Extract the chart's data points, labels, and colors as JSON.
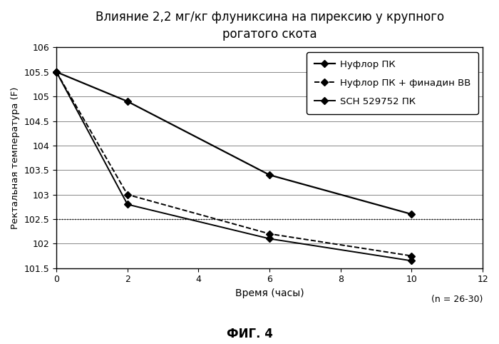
{
  "title": "Влияние 2,2 мг/кг флуниксина на пирексию у крупного\nрогатого скота",
  "xlabel": "Время (часы)",
  "ylabel": "Ректальная температура (F)",
  "figsize": [
    7.0,
    4.82
  ],
  "dpi": 100,
  "xlim": [
    0,
    12
  ],
  "ylim": [
    101.5,
    106
  ],
  "xticks": [
    0,
    2,
    4,
    6,
    8,
    10,
    12
  ],
  "yticks": [
    101.5,
    102.0,
    102.5,
    103.0,
    103.5,
    104.0,
    104.5,
    105.0,
    105.5,
    106.0
  ],
  "ytick_labels": [
    "101.5",
    "102",
    "102.5",
    "103",
    "103.5",
    "104",
    "104.5",
    "105",
    "105.5",
    "106"
  ],
  "hline_y": 102.5,
  "series": [
    {
      "label": "Нуфлор ПК",
      "x": [
        0,
        2,
        6,
        10
      ],
      "y": [
        105.5,
        104.9,
        103.4,
        102.6
      ],
      "color": "#000000",
      "linestyle": "-",
      "linewidth": 1.6,
      "marker": "D",
      "markersize": 5,
      "markerfacecolor": "#000000"
    },
    {
      "label": "Нуфлор ПК + финадин ВВ",
      "x": [
        0,
        2,
        6,
        10
      ],
      "y": [
        105.5,
        103.0,
        102.2,
        101.75
      ],
      "color": "#000000",
      "linestyle": "--",
      "linewidth": 1.4,
      "marker": "D",
      "markersize": 5,
      "markerfacecolor": "#000000"
    },
    {
      "label": "SCH 529752 ПК",
      "x": [
        0,
        2,
        6,
        10
      ],
      "y": [
        105.5,
        102.8,
        102.1,
        101.65
      ],
      "color": "#000000",
      "linestyle": "-",
      "linewidth": 1.4,
      "marker": "D",
      "markersize": 5,
      "markerfacecolor": "#000000"
    }
  ],
  "annotation": "(n = 26-30)",
  "fig_label": "ФИГ. 4",
  "background_color": "#ffffff",
  "plot_bg_color": "#ffffff",
  "grid_color": "#888888",
  "grid_linewidth": 0.7
}
